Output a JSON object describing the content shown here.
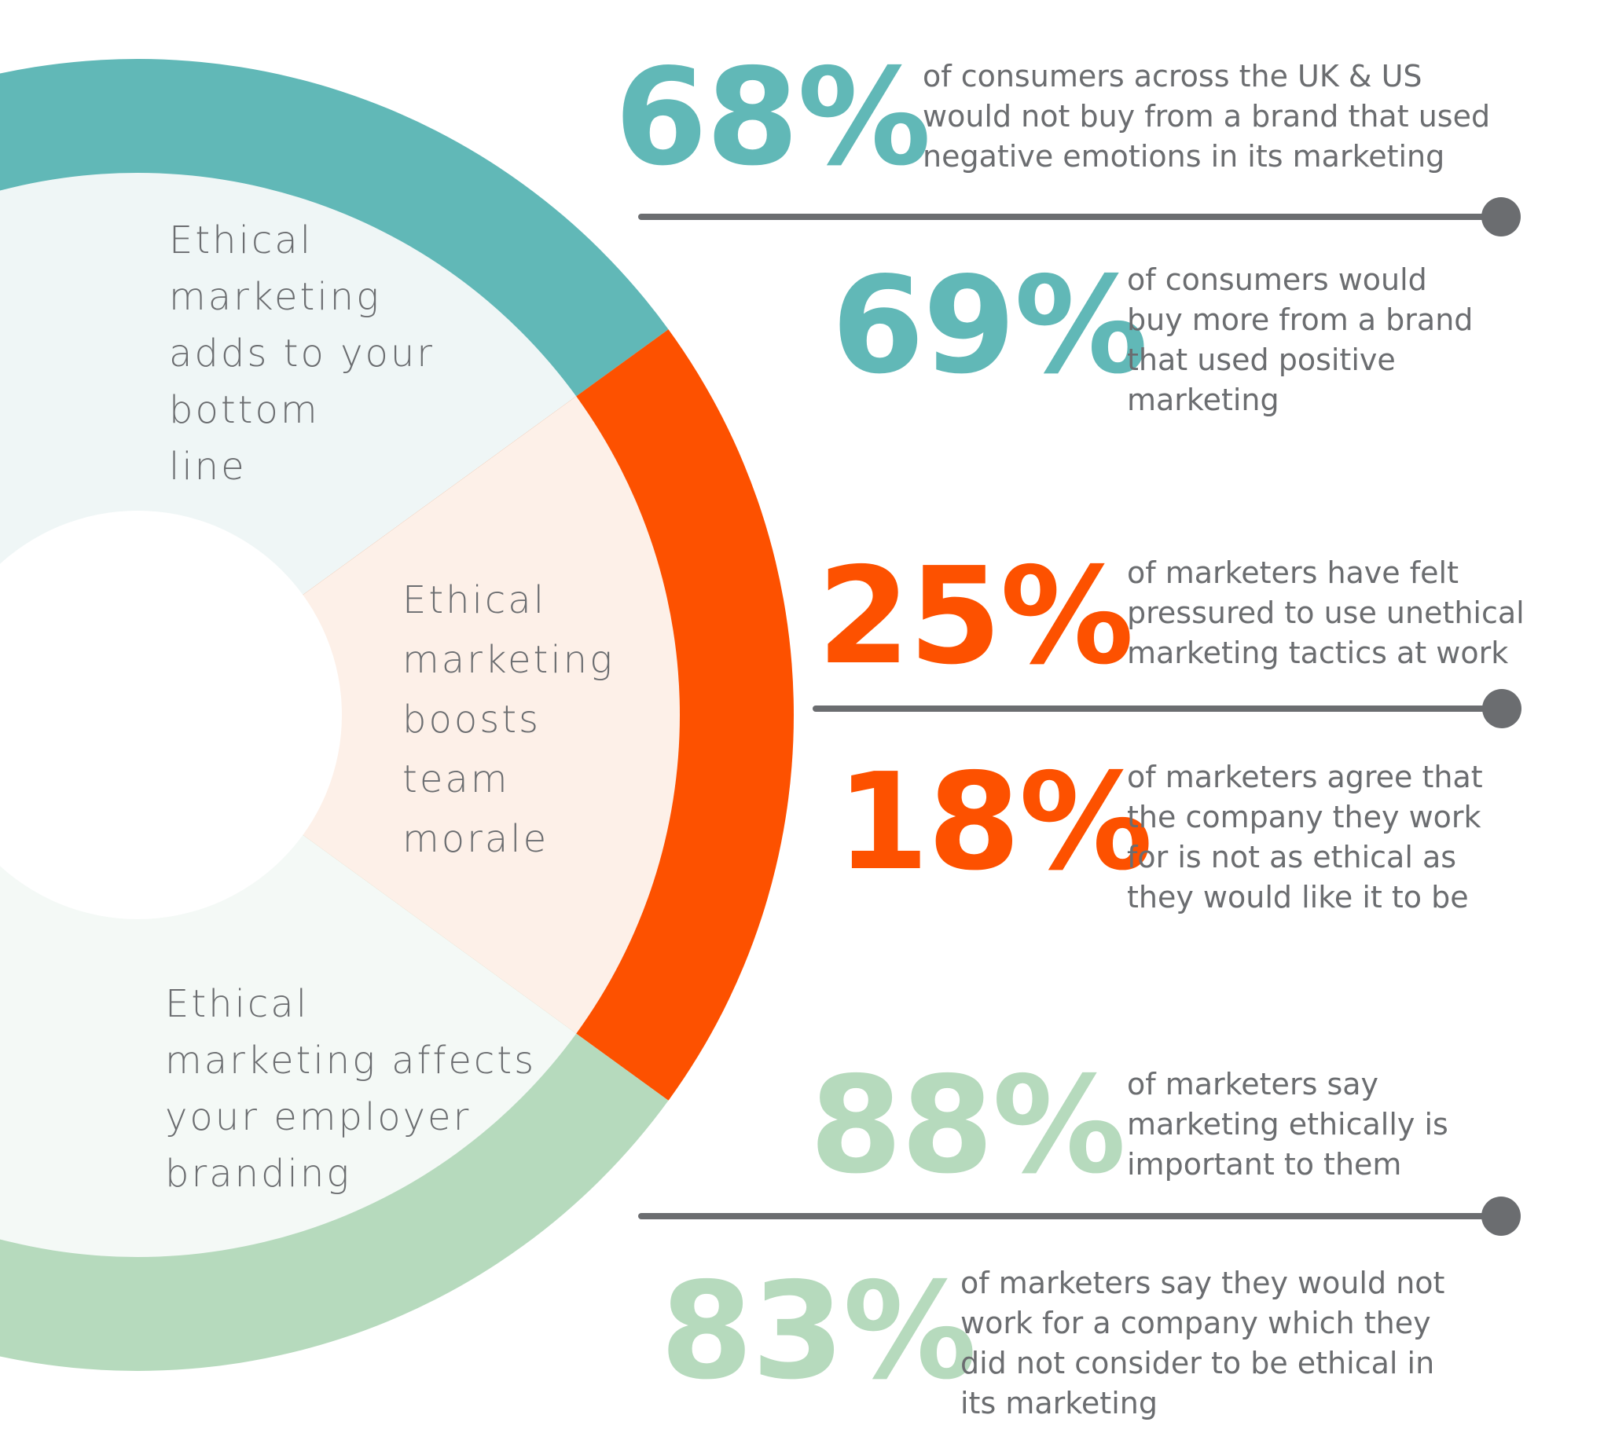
{
  "colors": {
    "teal": "#61b8b7",
    "orange": "#fd5100",
    "green": "#b6dabd",
    "teal_light": "#eff6f6",
    "orange_light": "#fdf0e8",
    "green_light": "#f4f9f6",
    "text_gray": "#6b6d70",
    "divider_gray": "#6b6d70"
  },
  "donut": {
    "segments": [
      {
        "label": "Ethical\nmarketing\nadds to your\nbottom\nline",
        "color": "teal"
      },
      {
        "label": "Ethical\nmarketing\nboosts\nteam\nmorale",
        "color": "orange"
      },
      {
        "label": "Ethical\nmarketing affects\nyour employer\nbranding",
        "color": "green"
      }
    ]
  },
  "stats": [
    {
      "value": "68%",
      "text": "of consumers across the UK & US\nwould not buy from a brand that used\nnegative emotions in its marketing",
      "color": "teal"
    },
    {
      "value": "69%",
      "text": "of consumers would\nbuy more from a brand\nthat used positive\nmarketing",
      "color": "teal"
    },
    {
      "value": "25%",
      "text": "of marketers have felt\npressured to use unethical\nmarketing tactics at work",
      "color": "orange"
    },
    {
      "value": "18%",
      "text": "of marketers agree that\nthe company they work\nfor is not as ethical as\nthey would like it to be",
      "color": "orange"
    },
    {
      "value": "88%",
      "text": "of marketers say\nmarketing ethically is\nimportant to them",
      "color": "green"
    },
    {
      "value": "83%",
      "text": "of marketers say they would not\nwork for a company which they\ndid not consider to be ethical in\nits marketing",
      "color": "green"
    }
  ]
}
